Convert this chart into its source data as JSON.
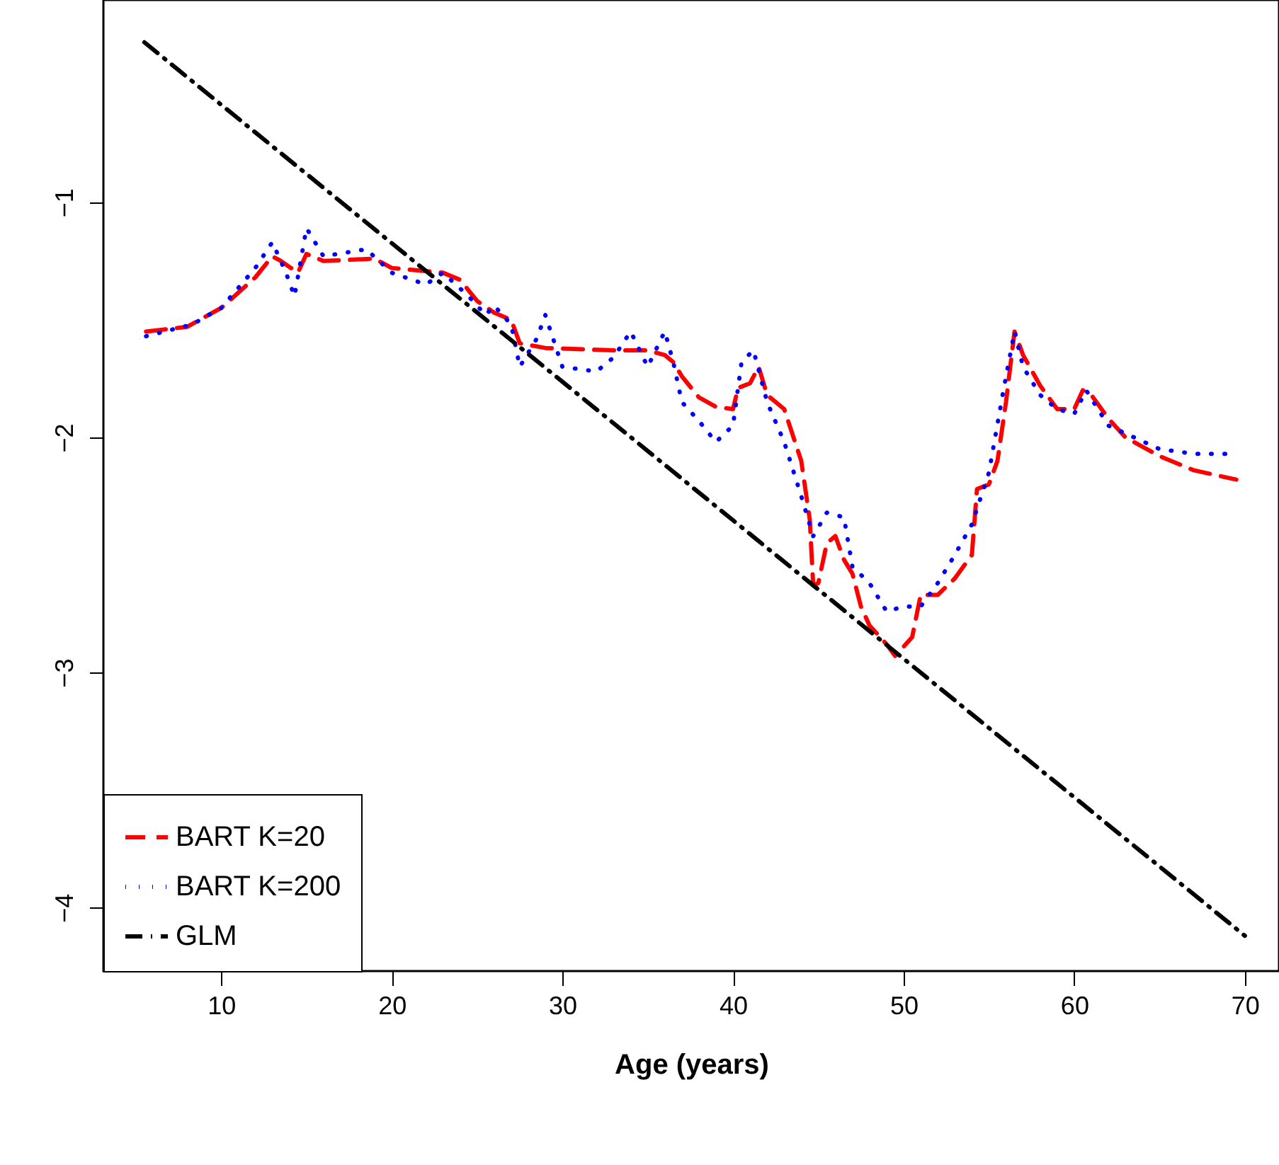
{
  "chart_data": {
    "type": "line",
    "xlabel": "Age (years)",
    "xlim": [
      3.1,
      72.0
    ],
    "ylim": [
      -4.27,
      -0.14
    ],
    "xticks": [
      10,
      20,
      30,
      40,
      50,
      60,
      70
    ],
    "yticks": [
      -1,
      -2,
      -3,
      -4
    ],
    "grid": false,
    "legend": "bottom left",
    "marker": "none",
    "series": [
      {
        "name": "BART K=20",
        "color": "#ff0000",
        "line_style": "dashed",
        "x": [
          5.6,
          8,
          10,
          12,
          13,
          13.5,
          14.5,
          15,
          16,
          19,
          20,
          23,
          24,
          25,
          26,
          27,
          27.5,
          29,
          33,
          35,
          36,
          36.5,
          37,
          38,
          39,
          40,
          40.3,
          41,
          41.5,
          42,
          43,
          44,
          44.5,
          44.7,
          45,
          45.5,
          46,
          46.5,
          47,
          47.5,
          48,
          49,
          49.5,
          50.5,
          51,
          52,
          53,
          54,
          54.3,
          55,
          55.5,
          56,
          56.5,
          57,
          58,
          59,
          60,
          60.5,
          61,
          62,
          63,
          65,
          67,
          69.5
        ],
        "values": [
          -1.55,
          -1.53,
          -1.45,
          -1.32,
          -1.23,
          -1.25,
          -1.3,
          -1.22,
          -1.25,
          -1.24,
          -1.28,
          -1.3,
          -1.33,
          -1.42,
          -1.47,
          -1.5,
          -1.6,
          -1.62,
          -1.63,
          -1.63,
          -1.65,
          -1.68,
          -1.74,
          -1.83,
          -1.87,
          -1.88,
          -1.79,
          -1.77,
          -1.7,
          -1.82,
          -1.88,
          -2.1,
          -2.35,
          -2.63,
          -2.62,
          -2.45,
          -2.42,
          -2.52,
          -2.58,
          -2.72,
          -2.8,
          -2.88,
          -2.93,
          -2.85,
          -2.67,
          -2.67,
          -2.6,
          -2.5,
          -2.22,
          -2.2,
          -2.1,
          -1.85,
          -1.55,
          -1.65,
          -1.78,
          -1.88,
          -1.88,
          -1.8,
          -1.82,
          -1.92,
          -2.0,
          -2.08,
          -2.14,
          -2.18
        ]
      },
      {
        "name": "BART K=200",
        "color": "#0000ff",
        "line_style": "dotted",
        "x": [
          5.6,
          8.3,
          10,
          12,
          13,
          13.8,
          14.3,
          15,
          16,
          18.5,
          20,
          22,
          23,
          24.5,
          25.5,
          26,
          27,
          27.5,
          28.5,
          29,
          30,
          32,
          33,
          34,
          35,
          36,
          36.5,
          37,
          38,
          39,
          40,
          40.5,
          41.2,
          42,
          43,
          44,
          44.7,
          45.5,
          46.5,
          47,
          48,
          49,
          50,
          51,
          52,
          53,
          54,
          55,
          55.8,
          56.5,
          57,
          58,
          59,
          60,
          60.7,
          62,
          63.5,
          65,
          67,
          69
        ],
        "values": [
          -1.57,
          -1.52,
          -1.45,
          -1.28,
          -1.17,
          -1.3,
          -1.4,
          -1.11,
          -1.23,
          -1.2,
          -1.3,
          -1.35,
          -1.3,
          -1.4,
          -1.48,
          -1.44,
          -1.52,
          -1.7,
          -1.58,
          -1.48,
          -1.7,
          -1.72,
          -1.66,
          -1.55,
          -1.7,
          -1.55,
          -1.68,
          -1.85,
          -1.93,
          -2.02,
          -1.95,
          -1.68,
          -1.63,
          -1.85,
          -2.02,
          -2.25,
          -2.42,
          -2.32,
          -2.34,
          -2.55,
          -2.62,
          -2.74,
          -2.72,
          -2.72,
          -2.62,
          -2.5,
          -2.37,
          -2.15,
          -1.82,
          -1.55,
          -1.7,
          -1.82,
          -1.88,
          -1.9,
          -1.8,
          -1.95,
          -2.0,
          -2.05,
          -2.07,
          -2.07
        ]
      },
      {
        "name": "GLM",
        "color": "#000000",
        "line_style": "dashdot",
        "x": [
          5.5,
          70
        ],
        "values": [
          -0.32,
          -4.12
        ]
      }
    ]
  }
}
